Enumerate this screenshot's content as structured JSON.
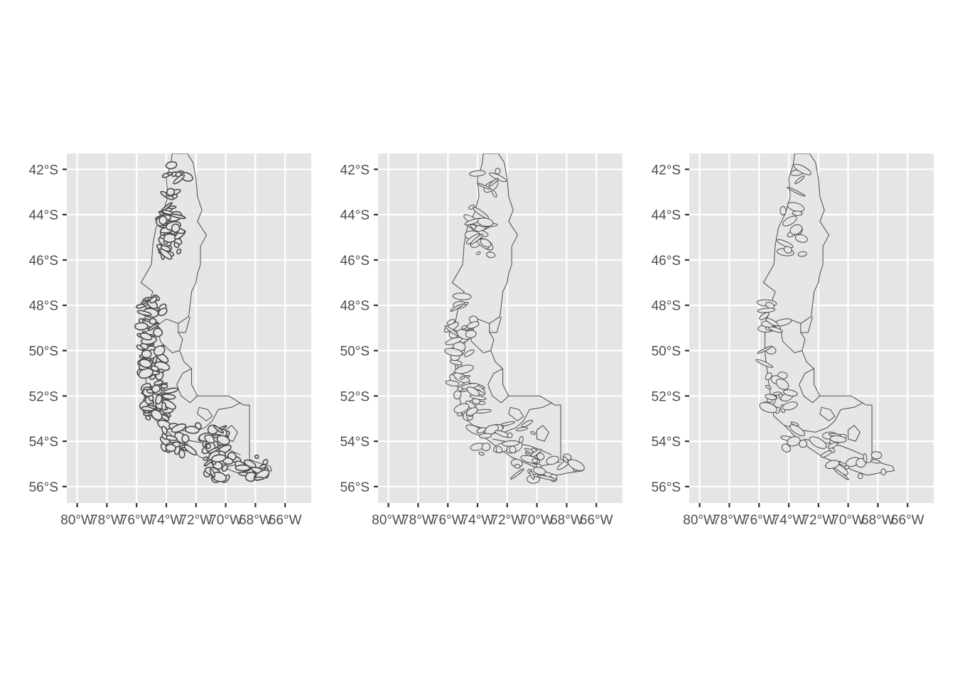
{
  "figure": {
    "panels": [
      {
        "id": "panel-1",
        "detail": "full"
      },
      {
        "id": "panel-2",
        "detail": "medium"
      },
      {
        "id": "panel-3",
        "detail": "low"
      }
    ],
    "y_ticks": [
      "42°S",
      "44°S",
      "46°S",
      "48°S",
      "50°S",
      "52°S",
      "54°S",
      "56°S"
    ],
    "x_ticks": [
      "80°W",
      "78°W",
      "76°W",
      "74°W",
      "72°W",
      "70°W",
      "68°W",
      "66°W"
    ],
    "colors": {
      "panel_bg": "#e5e5e5",
      "grid": "#ffffff",
      "land": "#e6e6e6",
      "outline": "#4a4a4a",
      "axis_text": "#4d4d4d"
    }
  },
  "chart_data": {
    "type": "map",
    "panel_count": 3,
    "region": "Southern Chile (Patagonia)",
    "lon_range": [
      -80.7,
      -64.4
    ],
    "lat_range": [
      -41.3,
      -56.6
    ],
    "lat_breaks": [
      -42,
      -44,
      -46,
      -48,
      -50,
      -52,
      -54,
      -56
    ],
    "lon_breaks": [
      -80,
      -78,
      -76,
      -74,
      -72,
      -70,
      -68,
      -66
    ],
    "grid": true
  }
}
